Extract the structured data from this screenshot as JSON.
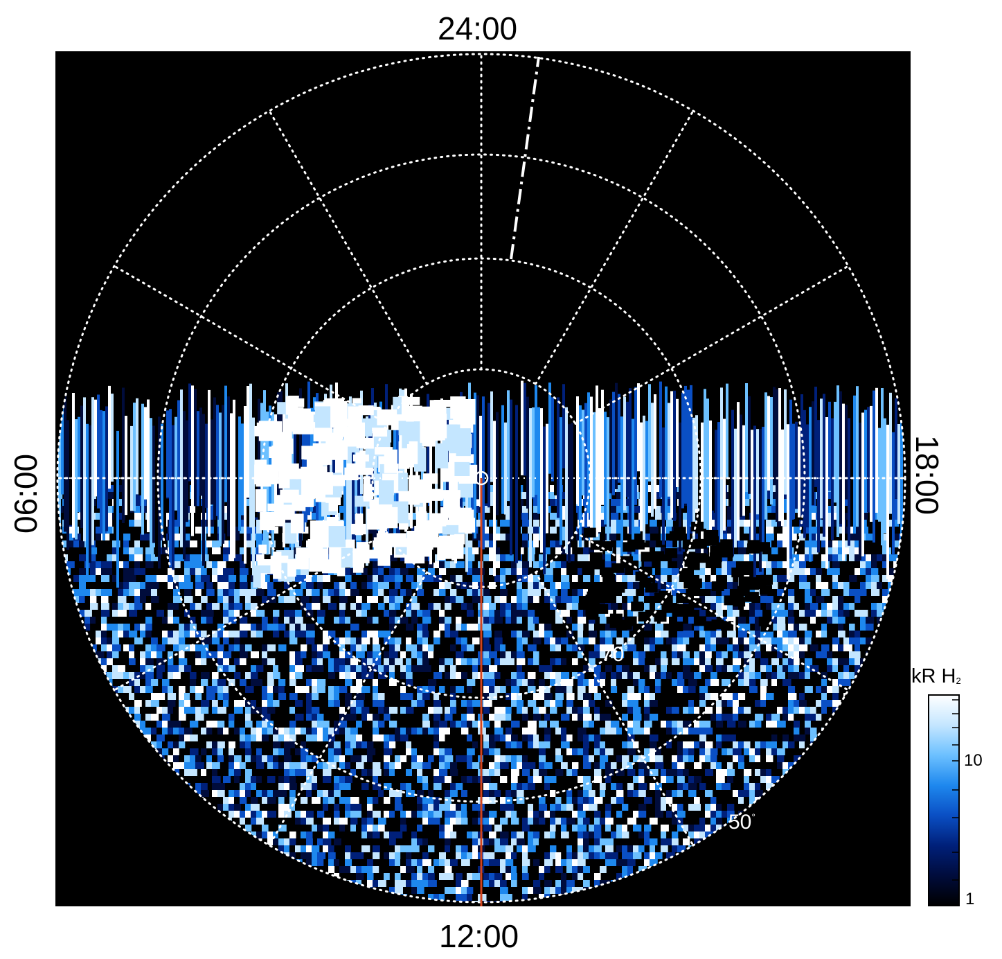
{
  "local_time_labels": {
    "top": "24:00",
    "bottom": "12:00",
    "left": "06:00",
    "right": "18:00"
  },
  "latitude_labels": [
    {
      "text": "70",
      "unit": "°"
    },
    {
      "text": "50",
      "unit": "°"
    }
  ],
  "colorbar": {
    "title": "kR H",
    "title_subscript": "2",
    "scale": "log",
    "range": [
      1,
      22
    ],
    "tick_labels": [
      "10",
      "1"
    ],
    "colors": [
      "#000000",
      "#000c3c",
      "#00207a",
      "#0a4fc4",
      "#1e88ee",
      "#6cc0ff",
      "#c4e6ff",
      "#ffffff"
    ]
  },
  "colors": {
    "background": "#000000",
    "grid": "#ffffff",
    "meridian_line": "#d2441e"
  }
}
